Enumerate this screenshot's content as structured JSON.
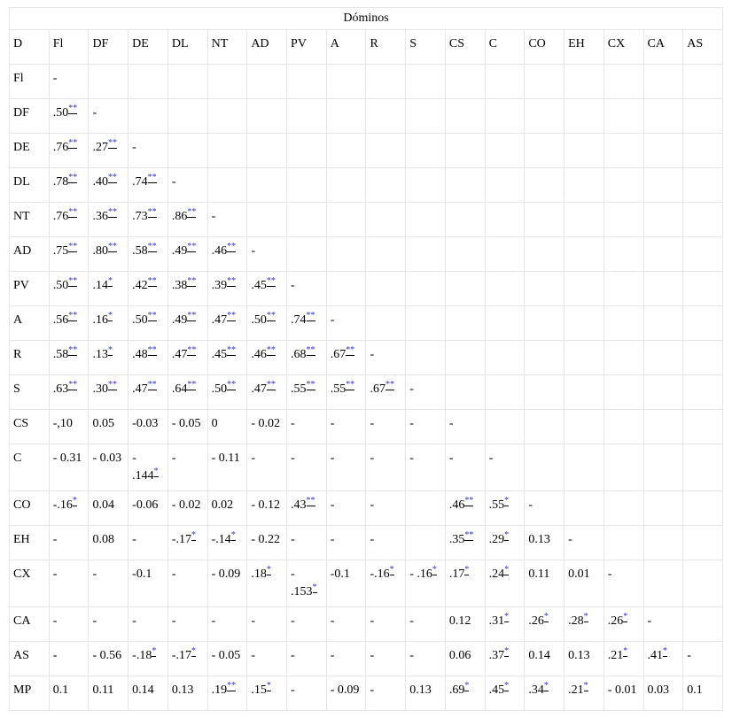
{
  "table": {
    "caption": "Dóminos",
    "header": [
      "D",
      "Fl",
      "DF",
      "DE",
      "DL",
      "NT",
      "AD",
      "PV",
      "A",
      "R",
      "S",
      "CS",
      "C",
      "CO",
      "EH",
      "CX",
      "CA",
      "AS"
    ],
    "rows": [
      {
        "label": "Fl",
        "cells": [
          "-"
        ]
      },
      {
        "label": "DF",
        "cells": [
          {
            "v": ".50",
            "sig": "**"
          },
          "-"
        ]
      },
      {
        "label": "DE",
        "cells": [
          {
            "v": ".76",
            "sig": "**"
          },
          {
            "v": ".27",
            "sig": "**"
          },
          "-"
        ]
      },
      {
        "label": "DL",
        "cells": [
          {
            "v": ".78",
            "sig": "**"
          },
          {
            "v": ".40",
            "sig": "**"
          },
          {
            "v": ".74",
            "sig": "**"
          },
          "-"
        ]
      },
      {
        "label": "NT",
        "cells": [
          {
            "v": ".76",
            "sig": "**"
          },
          {
            "v": ".36",
            "sig": "**"
          },
          {
            "v": ".73",
            "sig": "**"
          },
          {
            "v": ".86",
            "sig": "**"
          },
          "-"
        ]
      },
      {
        "label": "AD",
        "cells": [
          {
            "v": ".75",
            "sig": "**"
          },
          {
            "v": ".80",
            "sig": "**"
          },
          {
            "v": ".58",
            "sig": "**"
          },
          {
            "v": ".49",
            "sig": "**"
          },
          {
            "v": ".46",
            "sig": "**"
          },
          "-"
        ]
      },
      {
        "label": "PV",
        "cells": [
          {
            "v": ".50",
            "sig": "**"
          },
          {
            "v": ".14",
            "sig": "*"
          },
          {
            "v": ".42",
            "sig": "**"
          },
          {
            "v": ".38",
            "sig": "**"
          },
          {
            "v": ".39",
            "sig": "**"
          },
          {
            "v": ".45",
            "sig": "**"
          },
          "-"
        ]
      },
      {
        "label": "A",
        "cells": [
          {
            "v": ".56",
            "sig": "**"
          },
          {
            "v": ".16",
            "sig": "*"
          },
          {
            "v": ".50",
            "sig": "**"
          },
          {
            "v": ".49",
            "sig": "**"
          },
          {
            "v": ".47",
            "sig": "**"
          },
          {
            "v": ".50",
            "sig": "**"
          },
          {
            "v": ".74",
            "sig": "**"
          },
          "-"
        ]
      },
      {
        "label": "R",
        "cells": [
          {
            "v": ".58",
            "sig": "**"
          },
          {
            "v": ".13",
            "sig": "*"
          },
          {
            "v": ".48",
            "sig": "**"
          },
          {
            "v": ".47",
            "sig": "**"
          },
          {
            "v": ".45",
            "sig": "**"
          },
          {
            "v": ".46",
            "sig": "**"
          },
          {
            "v": ".68",
            "sig": "**"
          },
          {
            "v": ".67",
            "sig": "**"
          },
          "-"
        ]
      },
      {
        "label": "S",
        "cells": [
          {
            "v": ".63",
            "sig": "**"
          },
          {
            "v": ".30",
            "sig": "**"
          },
          {
            "v": ".47",
            "sig": "**"
          },
          {
            "v": ".64",
            "sig": "**"
          },
          {
            "v": ".50",
            "sig": "**"
          },
          {
            "v": ".47",
            "sig": "**"
          },
          {
            "v": ".55",
            "sig": "**"
          },
          {
            "v": ".55",
            "sig": "**"
          },
          {
            "v": ".67",
            "sig": "**"
          },
          "-"
        ]
      },
      {
        "label": "CS",
        "cells": [
          "-,10",
          "0.05",
          "-0.03",
          "- 0.05",
          "0",
          "- 0.02",
          "-",
          "-",
          "-",
          "-",
          "-"
        ]
      },
      {
        "label": "C",
        "cells": [
          "- 0.31",
          "- 0.03",
          {
            "v": "- .144",
            "sig": "*"
          },
          "-",
          "- 0.11",
          "-",
          "-",
          "-",
          "-",
          "-",
          "-",
          "-"
        ]
      },
      {
        "label": "CO",
        "cells": [
          {
            "v": "-.16",
            "sig": "*"
          },
          "0.04",
          "-0.06",
          "- 0.02",
          "0.02",
          "- 0.12",
          {
            "v": ".43",
            "sig": "**"
          },
          "-",
          "-",
          null,
          {
            "v": ".46",
            "sig": "**"
          },
          {
            "v": ".55",
            "sig": "*"
          },
          "-"
        ]
      },
      {
        "label": "EH",
        "cells": [
          "-",
          "0.08",
          "-",
          {
            "v": "-.17",
            "sig": "*"
          },
          {
            "v": "-.14",
            "sig": "*"
          },
          "- 0.22",
          "-",
          "-",
          "-",
          null,
          {
            "v": ".35",
            "sig": "**"
          },
          {
            "v": ".29",
            "sig": "*"
          },
          "0.13",
          "-"
        ]
      },
      {
        "label": "CX",
        "cells": [
          "-",
          "-",
          "-0.1",
          "-",
          "- 0.09",
          {
            "v": ".18",
            "sig": "*"
          },
          {
            "v": "- .153",
            "sig": "*"
          },
          "-0.1",
          {
            "v": "-.16",
            "sig": "*"
          },
          {
            "v": "- .16",
            "sig": "*"
          },
          {
            "v": ".17",
            "sig": "*"
          },
          {
            "v": ".24",
            "sig": "*"
          },
          "0.11",
          "0.01",
          "-"
        ]
      },
      {
        "label": "CA",
        "cells": [
          "-",
          "-",
          "-",
          "-",
          "-",
          "-",
          "-",
          "-",
          "-",
          "-",
          "0.12",
          {
            "v": ".31",
            "sig": "*"
          },
          {
            "v": ".26",
            "sig": "*"
          },
          {
            "v": ".28",
            "sig": "*"
          },
          {
            "v": ".26",
            "sig": "*"
          },
          "-"
        ]
      },
      {
        "label": "AS",
        "cells": [
          "-",
          "- 0.56",
          {
            "v": "-.18",
            "sig": "*"
          },
          {
            "v": "-.17",
            "sig": "*"
          },
          "- 0.05",
          "-",
          "-",
          "-",
          "-",
          "-",
          "0.06",
          {
            "v": ".37",
            "sig": "*"
          },
          "0.14",
          "0.13",
          {
            "v": ".21",
            "sig": "*"
          },
          {
            "v": ".41",
            "sig": "*"
          },
          "-"
        ]
      },
      {
        "label": "MP",
        "cells": [
          "0.1",
          "0.11",
          "0.14",
          "0.13",
          {
            "v": ".19",
            "sig": "**"
          },
          {
            "v": ".15",
            "sig": "*"
          },
          "-",
          "- 0.09",
          "-",
          "0.13",
          {
            "v": ".69",
            "sig": "*"
          },
          {
            "v": ".45",
            "sig": "*"
          },
          {
            "v": ".34",
            "sig": "*"
          },
          {
            "v": ".21",
            "sig": "*"
          },
          "- 0.01",
          "0.03",
          "0.1"
        ]
      }
    ]
  }
}
